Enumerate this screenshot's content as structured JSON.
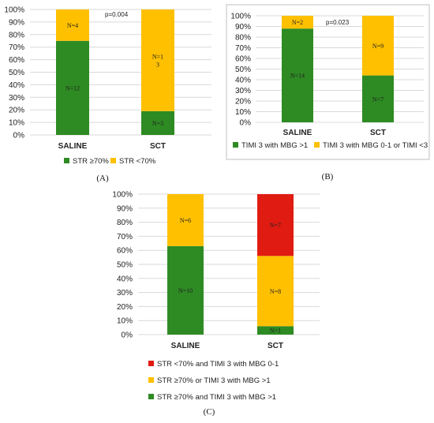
{
  "chart_data": [
    {
      "type": "bar",
      "stacked": true,
      "panel_label": "(A)",
      "categories": [
        "SALINE",
        "SCT"
      ],
      "yticks": [
        "0%",
        "10%",
        "20%",
        "30%",
        "40%",
        "50%",
        "60%",
        "70%",
        "80%",
        "90%",
        "100%"
      ],
      "ylim": [
        0,
        100
      ],
      "grid": true,
      "legend": "bottom",
      "annotation": "p=0.004",
      "series": [
        {
          "name": "STR ≥70%",
          "color": "#2e8b23",
          "values": [
            75,
            19
          ],
          "labels": [
            "N=12",
            "N=3"
          ]
        },
        {
          "name": "STR <70%",
          "color": "#ffc000",
          "values": [
            25,
            81
          ],
          "labels": [
            "N=4",
            "N=1\n3"
          ]
        }
      ]
    },
    {
      "type": "bar",
      "stacked": true,
      "panel_label": "(B)",
      "categories": [
        "SALINE",
        "SCT"
      ],
      "yticks": [
        "0%",
        "10%",
        "20%",
        "30%",
        "40%",
        "50%",
        "60%",
        "70%",
        "80%",
        "90%",
        "100%"
      ],
      "ylim": [
        0,
        100
      ],
      "grid": true,
      "legend": "bottom",
      "annotation": "p=0.023",
      "series": [
        {
          "name": "TIMI 3 with MBG >1",
          "color": "#2e8b23",
          "values": [
            88,
            44
          ],
          "labels": [
            "N=14",
            "N=7"
          ]
        },
        {
          "name": "TIMI 3 with MBG 0-1 or TIMI <3",
          "color": "#ffc000",
          "values": [
            12,
            56
          ],
          "labels": [
            "N=2",
            "N=9"
          ]
        }
      ]
    },
    {
      "type": "bar",
      "stacked": true,
      "panel_label": "(C)",
      "categories": [
        "SALINE",
        "SCT"
      ],
      "yticks": [
        "0%",
        "10%",
        "20%",
        "30%",
        "40%",
        "50%",
        "60%",
        "70%",
        "80%",
        "90%",
        "100%"
      ],
      "ylim": [
        0,
        100
      ],
      "grid": true,
      "legend": "right",
      "annotation": "",
      "series": [
        {
          "name": "STR ≥70% and TIMI 3 with MBG >1",
          "color": "#2e8b23",
          "values": [
            63,
            6
          ],
          "labels": [
            "N=10",
            "N=1"
          ]
        },
        {
          "name": "STR ≥70% or TIMI 3 with MBG >1",
          "color": "#ffc000",
          "values": [
            37,
            50
          ],
          "labels": [
            "N=6",
            "N=8"
          ]
        },
        {
          "name": "STR <70% and TIMI 3 with MBG 0-1",
          "color": "#e01b12",
          "values": [
            0,
            44
          ],
          "labels": [
            "",
            "N=7"
          ]
        }
      ]
    }
  ]
}
